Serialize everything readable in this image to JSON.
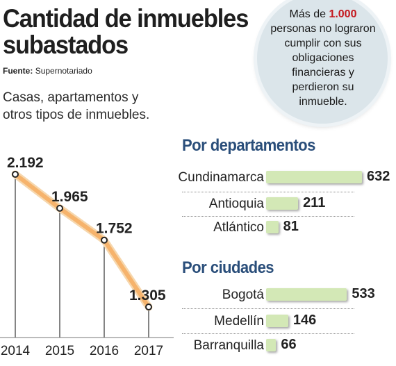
{
  "header": {
    "title_line1": "Cantidad de inmuebles",
    "title_line2": "subastados",
    "source_label": "Fuente:",
    "source_value": "Supernotariado",
    "subtitle_line1": "Casas, apartamentos y",
    "subtitle_line2": "otros tipos de inmuebles."
  },
  "callout": {
    "prefix": "Más de",
    "highlight": "1.000",
    "line2": "personas no lograron",
    "line3": "cumplir con sus",
    "line4": "obligaciones",
    "line5": "financieras y",
    "line6": "perdieron su",
    "line7": "inmueble.",
    "highlight_color": "#c4171d"
  },
  "chart_data": [
    {
      "type": "line",
      "x": [
        "2014",
        "2015",
        "2016",
        "2017"
      ],
      "values": [
        2192,
        1965,
        1752,
        1305
      ],
      "labels": [
        "2.192",
        "1.965",
        "1.752",
        "1.305"
      ],
      "color": "#f6b36c"
    },
    {
      "type": "bar",
      "title": "Por departamentos",
      "categories": [
        "Cundinamarca",
        "Antioquia",
        "Atlántico"
      ],
      "values": [
        632,
        211,
        81
      ],
      "color": "#d3e8b6"
    },
    {
      "type": "bar",
      "title": "Por ciudades",
      "categories": [
        "Bogotá",
        "Medellín",
        "Barranquilla"
      ],
      "values": [
        533,
        146,
        66
      ],
      "color": "#d3e8b6"
    }
  ]
}
